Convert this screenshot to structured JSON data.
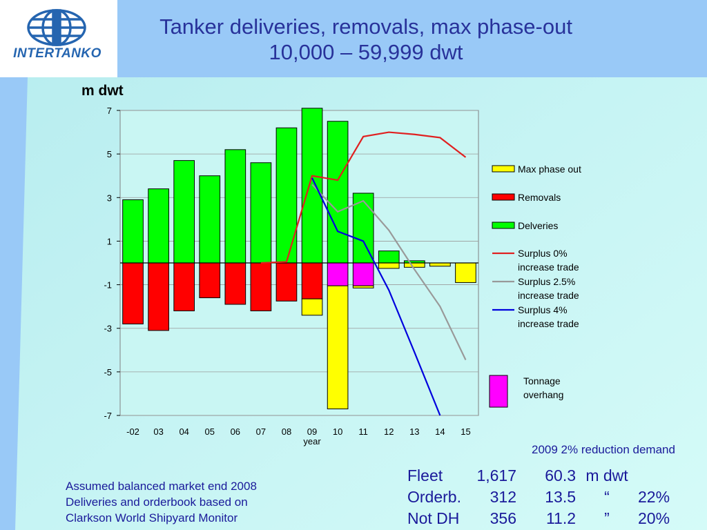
{
  "header": {
    "title_line1": "Tanker deliveries, removals, max phase-out",
    "title_line2": "10,000 – 59,999 dwt"
  },
  "logo": {
    "text": "INTERTANKO",
    "icon": "globe-icon",
    "color": "#2565b0"
  },
  "unit_label": "m dwt",
  "chart_data": {
    "type": "bar",
    "categories": [
      "-02",
      "03",
      "04",
      "05",
      "06",
      "07",
      "08",
      "09",
      "10",
      "11",
      "12",
      "13",
      "14",
      "15"
    ],
    "xlabel": "year",
    "ylabel": "m dwt",
    "ylim": [
      -7,
      7
    ],
    "yticks": [
      7,
      5,
      3,
      1,
      -1,
      -3,
      -5,
      -7
    ],
    "grid": true,
    "legend_position": "right",
    "stacked_series": [
      {
        "name": "Deliveries",
        "color": "#00ff00",
        "values": [
          2.9,
          3.4,
          4.7,
          4.0,
          5.2,
          4.6,
          6.2,
          7.1,
          6.5,
          3.2,
          0.55,
          0.1,
          0.0,
          0.0
        ]
      },
      {
        "name": "Removals",
        "color": "#ff0000",
        "values": [
          -2.8,
          -3.1,
          -2.2,
          -1.6,
          -1.9,
          -2.2,
          -1.75,
          -1.65,
          0,
          0,
          0,
          0,
          0,
          0
        ]
      },
      {
        "name": "Tonnage overhang",
        "color": "#ff00ff",
        "values": [
          0,
          0,
          0,
          0,
          0,
          0,
          0,
          0,
          -1.05,
          -1.05,
          0,
          0,
          0,
          0
        ]
      },
      {
        "name": "Max phase out",
        "color": "#ffff00",
        "values": [
          0,
          0,
          0,
          0,
          0,
          0,
          0,
          -0.75,
          -5.65,
          -0.1,
          -0.25,
          -0.2,
          -0.15,
          -0.9
        ]
      }
    ],
    "line_series": [
      {
        "name": "Surplus 0% increase trade",
        "color": "#e02020",
        "x": [
          "07",
          "08",
          "09",
          "10",
          "11",
          "12",
          "13",
          "14",
          "15"
        ],
        "values": [
          0.0,
          0.05,
          4.0,
          3.8,
          5.8,
          6.0,
          5.9,
          5.75,
          4.85
        ]
      },
      {
        "name": "Surplus 2.5% increase trade",
        "color": "#999999",
        "x": [
          "09",
          "10",
          "11",
          "12",
          "13",
          "14",
          "15"
        ],
        "values": [
          3.6,
          2.35,
          2.85,
          1.5,
          -0.3,
          -2.0,
          -4.45
        ]
      },
      {
        "name": "Surplus 4% increase trade",
        "color": "#0000dd",
        "x": [
          "09",
          "10",
          "11",
          "12",
          "13",
          "14"
        ],
        "values": [
          3.9,
          1.45,
          1.0,
          -1.25,
          -4.1,
          -7.0
        ]
      }
    ],
    "legend": [
      {
        "label": "Max phase out",
        "kind": "box",
        "color": "#ffff00"
      },
      {
        "label": "Removals",
        "kind": "box",
        "color": "#ff0000"
      },
      {
        "label": "Delveries",
        "kind": "box",
        "color": "#00ff00"
      },
      {
        "label": "Surplus 0%",
        "label2": "increase trade",
        "kind": "line",
        "color": "#e02020"
      },
      {
        "label": "Surplus 2.5%",
        "label2": "increase trade",
        "kind": "line",
        "color": "#999999"
      },
      {
        "label": "Surplus 4%",
        "label2": "increase trade",
        "kind": "line",
        "color": "#0000dd"
      },
      {
        "label": "Tonnage",
        "label2": "overhang",
        "kind": "tallbox",
        "color": "#ff00ff"
      }
    ]
  },
  "notes": {
    "line1": "Assumed balanced market end 2008",
    "line2": "Deliveries and orderbook based on",
    "line3": "Clarkson World Shipyard Monitor"
  },
  "reduction_note": "2009 2% reduction demand",
  "stats": [
    {
      "label": "Fleet",
      "count": "1,617",
      "value": "60.3",
      "unit": "m dwt",
      "pct": ""
    },
    {
      "label": "Orderb.",
      "count": "312",
      "value": "13.5",
      "unit": "“",
      "pct": "22%"
    },
    {
      "label": "Not DH",
      "count": "356",
      "value": "11.2",
      "unit": "”",
      "pct": "20%"
    }
  ]
}
